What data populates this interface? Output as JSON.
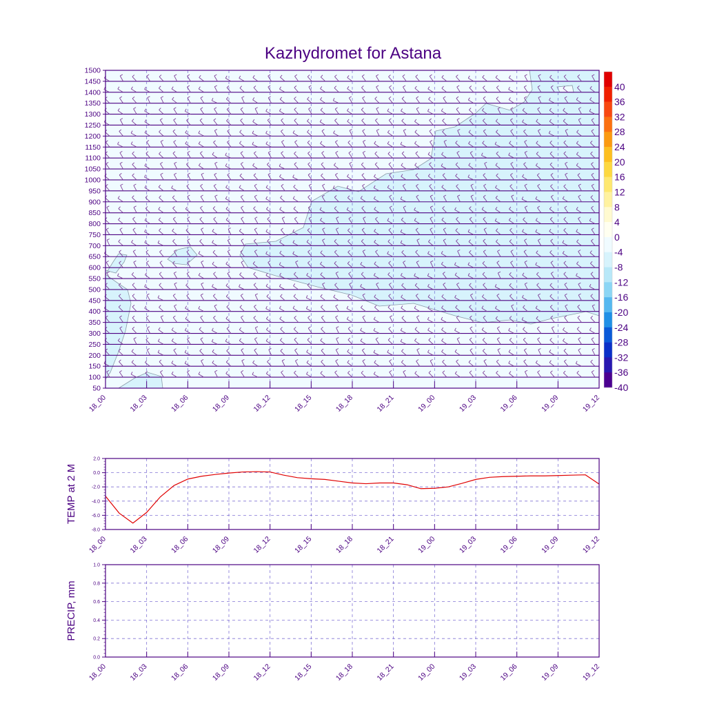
{
  "title": "Kazhydromet for Astana",
  "time_labels": [
    "18_00",
    "18_03",
    "18_06",
    "18_09",
    "18_12",
    "18_15",
    "18_18",
    "18_21",
    "19_00",
    "19_03",
    "19_06",
    "19_09",
    "19_12"
  ],
  "colors": {
    "axis": "#4b0082",
    "grid": "#6a5acd",
    "contour": "#8a9aa8",
    "temp_line": "#e00000"
  },
  "chart_data": [
    {
      "type": "heatmap",
      "name": "upper-air-section",
      "title": "Kazhydromet for Astana",
      "xlabel": "",
      "ylabel": "",
      "x_ticks": [
        "18_00",
        "18_03",
        "18_06",
        "18_09",
        "18_12",
        "18_15",
        "18_18",
        "18_21",
        "19_00",
        "19_03",
        "19_06",
        "19_09",
        "19_12"
      ],
      "y_ticks": [
        50,
        100,
        150,
        200,
        250,
        300,
        350,
        400,
        450,
        500,
        550,
        600,
        650,
        700,
        750,
        800,
        850,
        900,
        950,
        1000,
        1050,
        1100,
        1150,
        1200,
        1250,
        1300,
        1350,
        1400,
        1450,
        1500
      ],
      "ylim": [
        50,
        1500
      ],
      "grid": true,
      "wind_barbs": true,
      "colorbar": {
        "position": "right",
        "labels": [
          "40",
          "36",
          "32",
          "28",
          "24",
          "20",
          "16",
          "12",
          "8",
          "4",
          "0",
          "-4",
          "-8",
          "-12",
          "-16",
          "-20",
          "-24",
          "-28",
          "-32",
          "-36",
          "-40"
        ],
        "colors": [
          "#e00000",
          "#f02000",
          "#f84810",
          "#fb7010",
          "#fb9a10",
          "#fdbf20",
          "#fdd840",
          "#fee870",
          "#fff2a0",
          "#fffad0",
          "#fffff0",
          "#f0fbff",
          "#d7f3fc",
          "#b8e8f8",
          "#8cd6f5",
          "#55b8f0",
          "#2090e6",
          "#0a5ad8",
          "#0a30c8",
          "#2818b0",
          "#4b0090"
        ]
      },
      "shaded_regions": [
        {
          "level": "-8",
          "description": "cold air region"
        }
      ]
    },
    {
      "type": "line",
      "name": "temp-2m",
      "title": "",
      "xlabel": "",
      "ylabel": "TEMP at 2 M",
      "ylim": [
        -8.0,
        2.0
      ],
      "y_ticks": [
        "2.0",
        "0.0",
        "-2.0",
        "-4.0",
        "-6.0",
        "-8.0"
      ],
      "x_ticks": [
        "18_00",
        "18_03",
        "18_06",
        "18_09",
        "18_12",
        "18_15",
        "18_18",
        "18_21",
        "19_00",
        "19_03",
        "19_06",
        "19_09",
        "19_12"
      ],
      "grid": true,
      "series": [
        {
          "name": "",
          "x": [
            0,
            1,
            2,
            3,
            4,
            5,
            6,
            7,
            8,
            9,
            10,
            11,
            12,
            13,
            14,
            15,
            16,
            17,
            18,
            19,
            20,
            21,
            22,
            23,
            24,
            25,
            26,
            27,
            28,
            29,
            30,
            31,
            32,
            33,
            34,
            35,
            36
          ],
          "values": [
            -3.3,
            -5.7,
            -7.1,
            -5.6,
            -3.4,
            -1.8,
            -0.9,
            -0.5,
            -0.25,
            -0.05,
            0.1,
            0.15,
            0.1,
            -0.35,
            -0.7,
            -0.85,
            -0.95,
            -1.2,
            -1.45,
            -1.55,
            -1.45,
            -1.45,
            -1.7,
            -2.25,
            -2.2,
            -2.0,
            -1.5,
            -0.95,
            -0.65,
            -0.55,
            -0.5,
            -0.45,
            -0.45,
            -0.4,
            -0.35,
            -0.3,
            -1.6
          ]
        }
      ]
    },
    {
      "type": "line",
      "name": "precip",
      "title": "",
      "xlabel": "",
      "ylabel": "PRECIP, mm",
      "ylim": [
        0.0,
        1.0
      ],
      "y_ticks": [
        "1.0",
        "0.8",
        "0.6",
        "0.4",
        "0.2",
        "0.0"
      ],
      "x_ticks": [
        "18_00",
        "18_03",
        "18_06",
        "18_09",
        "18_12",
        "18_15",
        "18_18",
        "18_21",
        "19_00",
        "19_03",
        "19_06",
        "19_09",
        "19_12"
      ],
      "grid": true,
      "series": []
    }
  ]
}
